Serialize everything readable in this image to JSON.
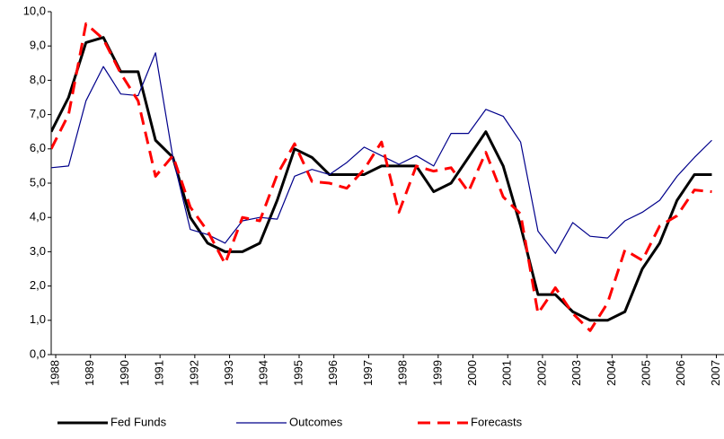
{
  "chart_data": {
    "type": "line",
    "x": [
      1987.87,
      1988.37,
      1988.87,
      1989.37,
      1989.87,
      1990.37,
      1990.87,
      1991.37,
      1991.87,
      1992.37,
      1992.87,
      1993.37,
      1993.87,
      1994.37,
      1994.87,
      1995.37,
      1995.87,
      1996.37,
      1996.87,
      1997.37,
      1997.87,
      1998.37,
      1998.87,
      1999.37,
      1999.87,
      2000.37,
      2000.87,
      2001.37,
      2001.87,
      2002.37,
      2002.87,
      2003.37,
      2003.87,
      2004.37,
      2004.87,
      2005.37,
      2005.87,
      2006.37,
      2006.87
    ],
    "series": [
      {
        "name": "Fed Funds",
        "color": "#000000",
        "width": 3,
        "dash": false,
        "values": [
          6.5,
          7.5,
          9.1,
          9.25,
          8.25,
          8.25,
          6.25,
          5.75,
          4.0,
          3.25,
          3.0,
          3.0,
          3.25,
          4.5,
          6.0,
          5.75,
          5.25,
          5.25,
          5.25,
          5.5,
          5.5,
          5.5,
          4.75,
          5.0,
          5.75,
          6.5,
          5.5,
          3.75,
          1.75,
          1.75,
          1.25,
          1.0,
          1.0,
          1.25,
          2.5,
          3.25,
          4.5,
          5.25,
          5.25
        ]
      },
      {
        "name": "Outcomes",
        "color": "#00008b",
        "width": 1.2,
        "dash": false,
        "values": [
          5.45,
          5.5,
          7.4,
          8.4,
          7.6,
          7.55,
          8.8,
          5.75,
          3.65,
          3.5,
          3.25,
          3.9,
          4.0,
          3.95,
          5.2,
          5.4,
          5.25,
          5.6,
          6.05,
          5.8,
          5.55,
          5.8,
          5.5,
          6.45,
          6.45,
          7.15,
          6.95,
          6.2,
          3.6,
          2.95,
          3.85,
          3.45,
          3.4,
          3.9,
          4.15,
          4.5,
          5.2,
          5.75,
          6.25
        ]
      },
      {
        "name": "Forecasts",
        "color": "#ff0000",
        "width": 3,
        "dash": true,
        "values": [
          6.0,
          7.0,
          9.65,
          9.2,
          8.2,
          7.4,
          5.2,
          5.8,
          4.3,
          3.6,
          2.65,
          4.0,
          3.9,
          5.25,
          6.15,
          5.05,
          5.0,
          4.85,
          5.4,
          6.2,
          4.15,
          5.5,
          5.35,
          5.45,
          4.75,
          5.9,
          4.6,
          4.1,
          1.2,
          1.95,
          1.2,
          0.7,
          1.5,
          3.05,
          2.75,
          3.75,
          4.05,
          4.8,
          4.75
        ]
      }
    ],
    "xlim": [
      1987.87,
      2007.22
    ],
    "xticks": [
      1988,
      1989,
      1990,
      1991,
      1992,
      1993,
      1994,
      1995,
      1996,
      1997,
      1998,
      1999,
      2000,
      2001,
      2002,
      2003,
      2004,
      2005,
      2006,
      2007
    ],
    "ylim": [
      0,
      10
    ],
    "yticks": [
      {
        "value": 0,
        "label": "0,0"
      },
      {
        "value": 1,
        "label": "1,0"
      },
      {
        "value": 2,
        "label": "2,0"
      },
      {
        "value": 3,
        "label": "3,0"
      },
      {
        "value": 4,
        "label": "4,0"
      },
      {
        "value": 5,
        "label": "5,0"
      },
      {
        "value": 6,
        "label": "6,0"
      },
      {
        "value": 7,
        "label": "7,0"
      },
      {
        "value": 8,
        "label": "8,0"
      },
      {
        "value": 9,
        "label": "9,0"
      },
      {
        "value": 10,
        "label": "10,0"
      }
    ],
    "legend": "bottom"
  }
}
